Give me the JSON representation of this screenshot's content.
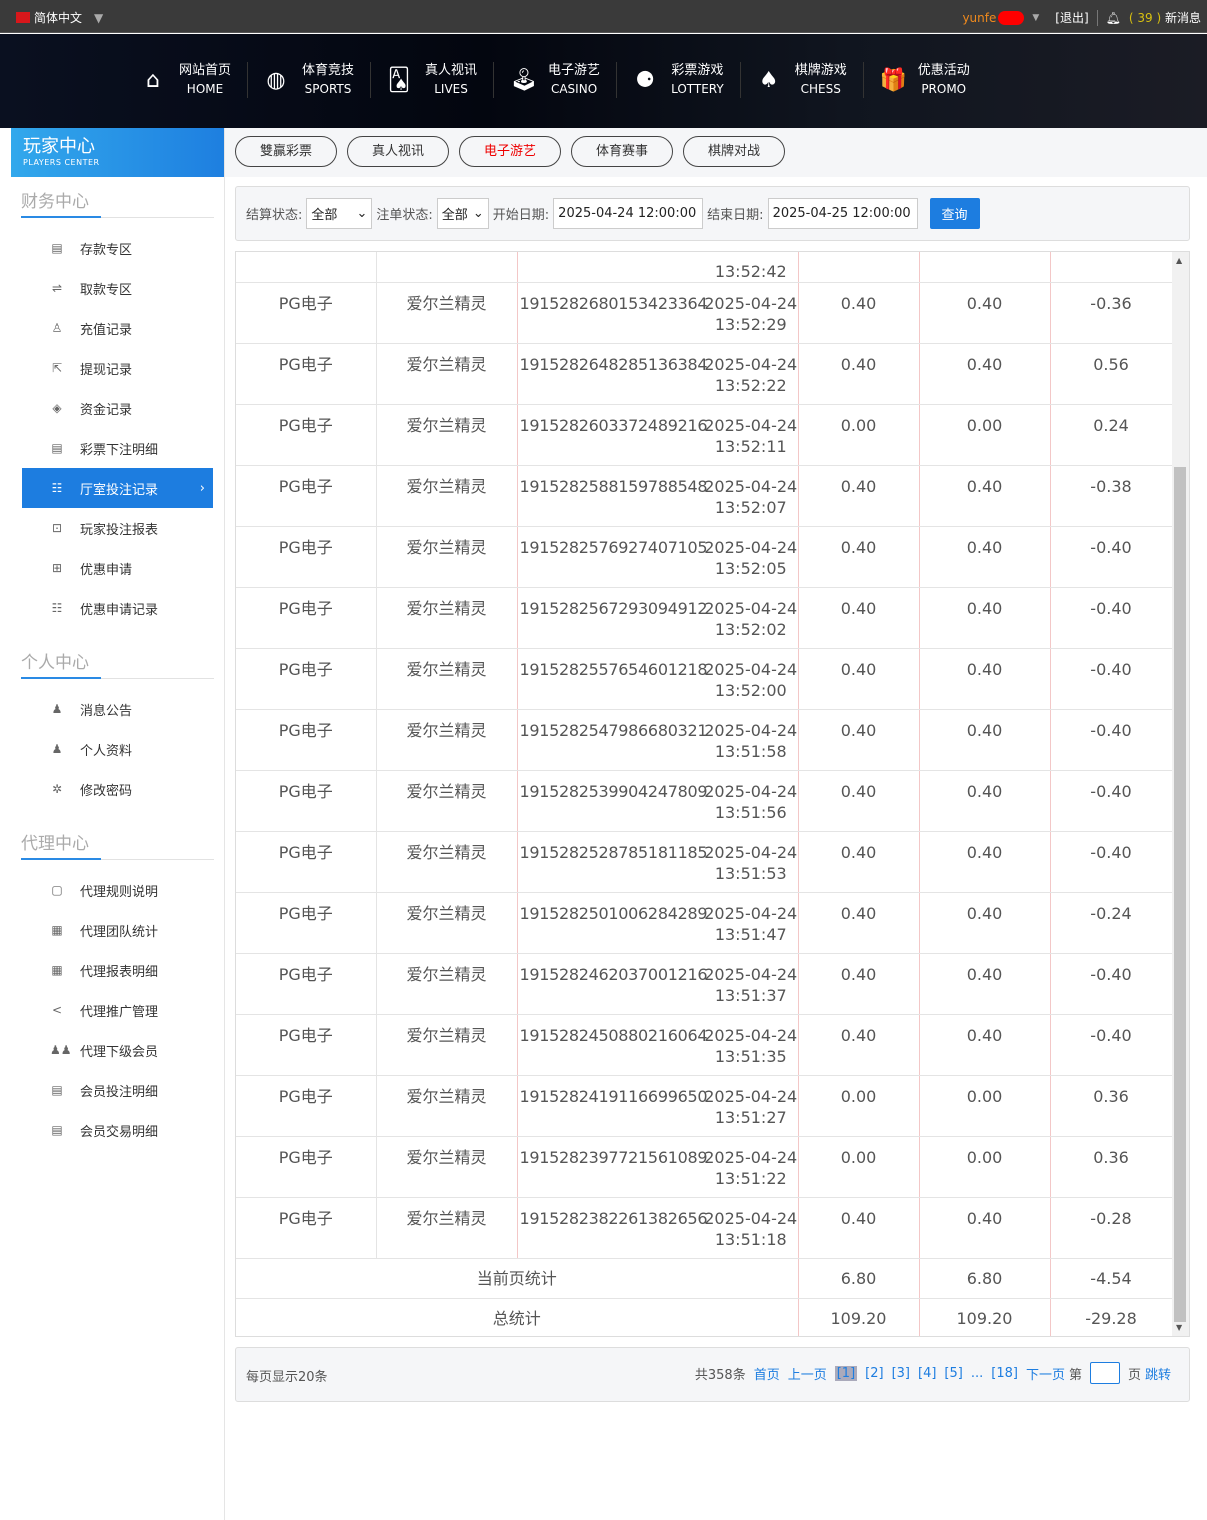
{
  "topbar": {
    "language": "简体中文",
    "username": "yunfe",
    "logout": "[退出]",
    "message_count": "( 39 )",
    "messages": "新消息"
  },
  "nav": [
    {
      "cn": "网站首页",
      "en": "HOME",
      "icon": "home-icon"
    },
    {
      "cn": "体育竞技",
      "en": "SPORTS",
      "icon": "ball-icon"
    },
    {
      "cn": "真人视讯",
      "en": "LIVES",
      "icon": "cards-icon"
    },
    {
      "cn": "电子游艺",
      "en": "CASINO",
      "icon": "joystick-icon"
    },
    {
      "cn": "彩票游戏",
      "en": "LOTTERY",
      "icon": "lottery-balls-icon"
    },
    {
      "cn": "棋牌游戏",
      "en": "CHESS",
      "icon": "spade-icon"
    },
    {
      "cn": "优惠活动",
      "en": "PROMO",
      "icon": "gift-icon"
    }
  ],
  "sidebar": {
    "title": "玩家中心",
    "subtitle": "PLAYERS CENTER",
    "sections": [
      {
        "title": "财务中心",
        "items": [
          "存款专区",
          "取款专区",
          "充值记录",
          "提现记录",
          "资金记录",
          "彩票下注明细",
          "厅室投注记录",
          "玩家投注报表",
          "优惠申请",
          "优惠申请记录"
        ]
      },
      {
        "title": "个人中心",
        "items": [
          "消息公告",
          "个人资料",
          "修改密码"
        ]
      },
      {
        "title": "代理中心",
        "items": [
          "代理规则说明",
          "代理团队统计",
          "代理报表明细",
          "代理推广管理",
          "代理下级会员",
          "会员投注明细",
          "会员交易明细"
        ]
      }
    ],
    "active": "厅室投注记录"
  },
  "tabs": [
    {
      "label": "雙贏彩票"
    },
    {
      "label": "真人视讯"
    },
    {
      "label": "电子游艺",
      "active": true
    },
    {
      "label": "体育赛事"
    },
    {
      "label": "棋牌对战"
    }
  ],
  "filter": {
    "settle_label": "结算状态:",
    "settle_value": "全部",
    "bet_label": "注单状态:",
    "bet_value": "全部",
    "start_label": "开始日期:",
    "start_value": "2025-04-24 12:00:00",
    "end_label": "结束日期:",
    "end_value": "2025-04-25 12:00:00",
    "query": "查询"
  },
  "table": {
    "partial_time": "13:52:42",
    "rows": [
      [
        "PG电子",
        "爱尔兰精灵",
        "1915282680153423364",
        "2025-04-24",
        "13:52:29",
        "0.40",
        "0.40",
        "-0.36"
      ],
      [
        "PG电子",
        "爱尔兰精灵",
        "1915282648285136384",
        "2025-04-24",
        "13:52:22",
        "0.40",
        "0.40",
        "0.56"
      ],
      [
        "PG电子",
        "爱尔兰精灵",
        "1915282603372489216",
        "2025-04-24",
        "13:52:11",
        "0.00",
        "0.00",
        "0.24"
      ],
      [
        "PG电子",
        "爱尔兰精灵",
        "1915282588159788548",
        "2025-04-24",
        "13:52:07",
        "0.40",
        "0.40",
        "-0.38"
      ],
      [
        "PG电子",
        "爱尔兰精灵",
        "1915282576927407105",
        "2025-04-24",
        "13:52:05",
        "0.40",
        "0.40",
        "-0.40"
      ],
      [
        "PG电子",
        "爱尔兰精灵",
        "1915282567293094912",
        "2025-04-24",
        "13:52:02",
        "0.40",
        "0.40",
        "-0.40"
      ],
      [
        "PG电子",
        "爱尔兰精灵",
        "1915282557654601218",
        "2025-04-24",
        "13:52:00",
        "0.40",
        "0.40",
        "-0.40"
      ],
      [
        "PG电子",
        "爱尔兰精灵",
        "1915282547986680321",
        "2025-04-24",
        "13:51:58",
        "0.40",
        "0.40",
        "-0.40"
      ],
      [
        "PG电子",
        "爱尔兰精灵",
        "1915282539904247809",
        "2025-04-24",
        "13:51:56",
        "0.40",
        "0.40",
        "-0.40"
      ],
      [
        "PG电子",
        "爱尔兰精灵",
        "1915282528785181185",
        "2025-04-24",
        "13:51:53",
        "0.40",
        "0.40",
        "-0.40"
      ],
      [
        "PG电子",
        "爱尔兰精灵",
        "1915282501006284289",
        "2025-04-24",
        "13:51:47",
        "0.40",
        "0.40",
        "-0.24"
      ],
      [
        "PG电子",
        "爱尔兰精灵",
        "1915282462037001216",
        "2025-04-24",
        "13:51:37",
        "0.40",
        "0.40",
        "-0.40"
      ],
      [
        "PG电子",
        "爱尔兰精灵",
        "1915282450880216064",
        "2025-04-24",
        "13:51:35",
        "0.40",
        "0.40",
        "-0.40"
      ],
      [
        "PG电子",
        "爱尔兰精灵",
        "1915282419116699650",
        "2025-04-24",
        "13:51:27",
        "0.00",
        "0.00",
        "0.36"
      ],
      [
        "PG电子",
        "爱尔兰精灵",
        "1915282397721561089",
        "2025-04-24",
        "13:51:22",
        "0.00",
        "0.00",
        "0.36"
      ],
      [
        "PG电子",
        "爱尔兰精灵",
        "1915282382261382656",
        "2025-04-24",
        "13:51:18",
        "0.40",
        "0.40",
        "-0.28"
      ]
    ],
    "page_total": {
      "label": "当前页统计",
      "bet": "6.80",
      "valid": "6.80",
      "win": "-4.54"
    },
    "grand_total": {
      "label": "总统计",
      "bet": "109.20",
      "valid": "109.20",
      "win": "-29.28"
    }
  },
  "pager": {
    "per_page": "每页显示20条",
    "total": "共358条",
    "first": "首页",
    "prev": "上一页",
    "pages": [
      "[1]",
      "[2]",
      "[3]",
      "[4]",
      "[5]"
    ],
    "ellipsis": "...",
    "last_page": "[18]",
    "next": "下一页",
    "goto_prefix": "第",
    "goto_suffix": "页",
    "jump": "跳转"
  }
}
